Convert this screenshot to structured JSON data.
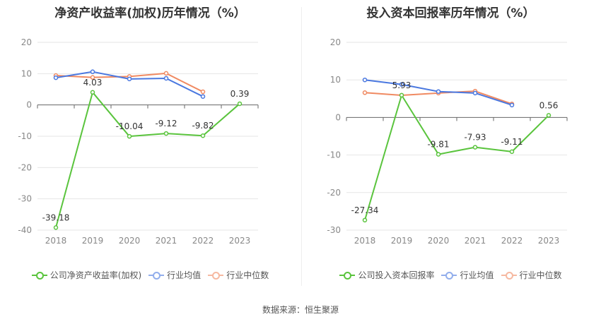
{
  "chart_data": [
    {
      "type": "line",
      "title": "净资产收益率(加权)历年情况（%）",
      "categories": [
        "2018",
        "2019",
        "2020",
        "2021",
        "2022",
        "2023"
      ],
      "ylim": [
        -40,
        20
      ],
      "yticks": [
        20,
        10,
        0,
        -10,
        -20,
        -30,
        -40
      ],
      "grid": true,
      "legend_position": "bottom",
      "series": [
        {
          "name": "公司净资产收益率(加权)",
          "color": "#5ac43d",
          "values": [
            -39.18,
            4.03,
            -10.04,
            -9.12,
            -9.82,
            0.39
          ],
          "labels": [
            "-39.18",
            "4.03",
            "-10.04",
            "-9.12",
            "-9.82",
            "0.39"
          ]
        },
        {
          "name": "行业均值",
          "color": "#4a78e0",
          "values": [
            8.7,
            10.6,
            8.3,
            8.5,
            2.7,
            null
          ]
        },
        {
          "name": "行业中位数",
          "color": "#f08a62",
          "values": [
            9.4,
            8.8,
            9.1,
            10.1,
            4.2,
            null
          ]
        }
      ]
    },
    {
      "type": "line",
      "title": "投入资本回报率历年情况（%）",
      "categories": [
        "2018",
        "2019",
        "2020",
        "2021",
        "2022",
        "2023"
      ],
      "ylim": [
        -30,
        20
      ],
      "yticks": [
        20,
        10,
        0,
        -10,
        -20,
        -30
      ],
      "grid": true,
      "legend_position": "bottom",
      "series": [
        {
          "name": "公司投入资本回报率",
          "color": "#5ac43d",
          "values": [
            -27.34,
            5.93,
            -9.81,
            -7.93,
            -9.11,
            0.56
          ],
          "labels": [
            "-27.34",
            "5.93",
            "-9.81",
            "-7.93",
            "-9.11",
            "0.56"
          ]
        },
        {
          "name": "行业均值",
          "color": "#4a78e0",
          "values": [
            10.0,
            8.8,
            6.9,
            6.5,
            3.3,
            null
          ]
        },
        {
          "name": "行业中位数",
          "color": "#f08a62",
          "values": [
            6.6,
            5.9,
            6.5,
            7.0,
            3.6,
            null
          ]
        }
      ]
    }
  ],
  "source": "数据来源：恒生聚源"
}
